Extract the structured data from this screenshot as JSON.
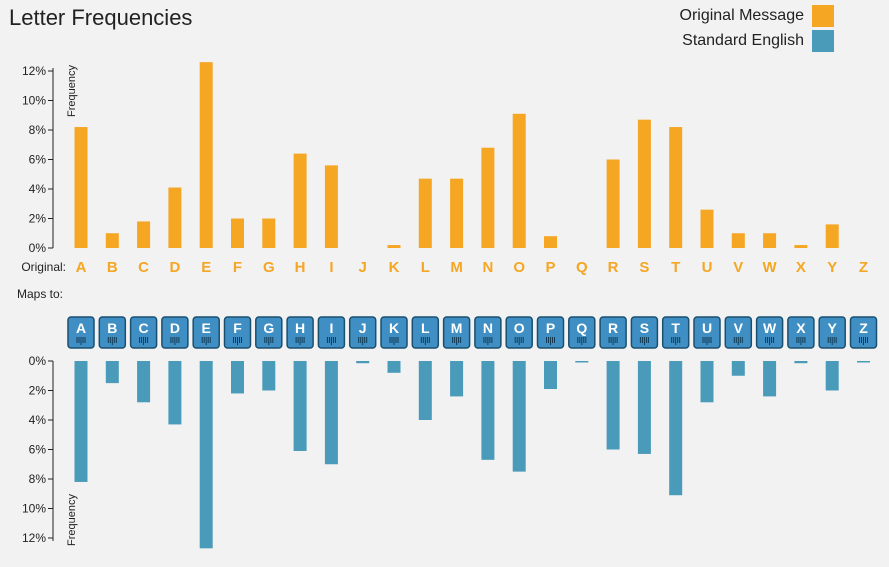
{
  "chart_data": {
    "type": "bar",
    "title": "Letter Frequencies",
    "legend": [
      {
        "name": "Original Message",
        "color": "#f5a623"
      },
      {
        "name": "Standard English",
        "color": "#4a9ab9"
      }
    ],
    "categories": [
      "A",
      "B",
      "C",
      "D",
      "E",
      "F",
      "G",
      "H",
      "I",
      "J",
      "K",
      "L",
      "M",
      "N",
      "O",
      "P",
      "Q",
      "R",
      "S",
      "T",
      "U",
      "V",
      "W",
      "X",
      "Y",
      "Z"
    ],
    "original_row_label": "Original:",
    "maps_to_label": "Maps to:",
    "ylabel": "Frequency",
    "ylim": [
      0,
      12
    ],
    "yticks": [
      "0%",
      "2%",
      "4%",
      "6%",
      "8%",
      "10%",
      "12%"
    ],
    "series": [
      {
        "name": "Original Message",
        "color": "#f5a623",
        "values": [
          8.2,
          1.0,
          1.8,
          4.1,
          12.6,
          2.0,
          2.0,
          6.4,
          5.6,
          0,
          0.2,
          4.7,
          4.7,
          6.8,
          9.1,
          0.8,
          0,
          6.0,
          8.7,
          8.2,
          2.6,
          1.0,
          1.0,
          0.2,
          1.6,
          0
        ]
      },
      {
        "name": "Standard English",
        "color": "#4a9ab9",
        "values": [
          8.2,
          1.5,
          2.8,
          4.3,
          12.7,
          2.2,
          2.0,
          6.1,
          7.0,
          0.15,
          0.8,
          4.0,
          2.4,
          6.7,
          7.5,
          1.9,
          0.1,
          6.0,
          6.3,
          9.1,
          2.8,
          1.0,
          2.4,
          0.15,
          2.0,
          0.1
        ]
      }
    ]
  }
}
